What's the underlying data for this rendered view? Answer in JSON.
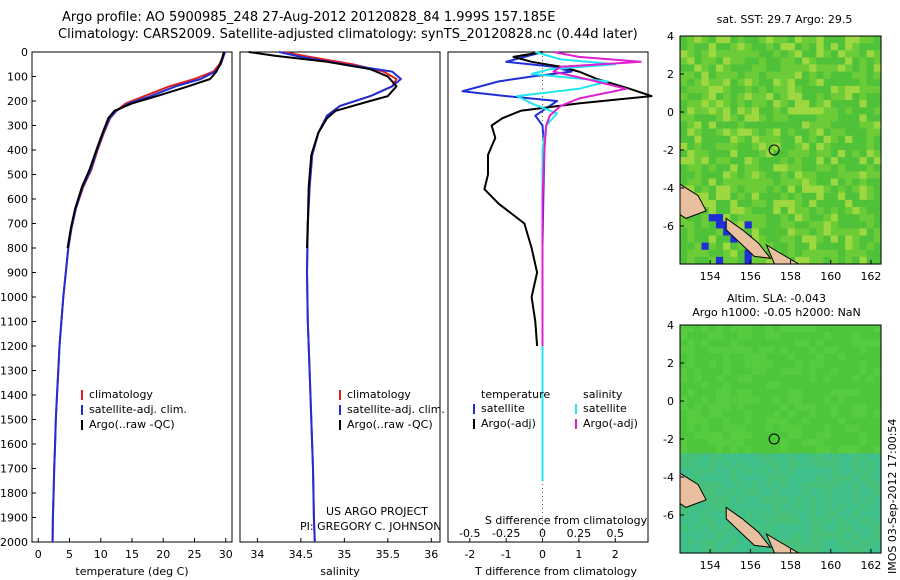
{
  "header": {
    "title_line1": "Argo profile: AO 5900985_248 27-Aug-2012 20120828_84 1.999S 157.185E",
    "title_line2": "Climatology: CARS2009. Satellite-adjusted climatology: synTS_20120828.nc (0.44d later)"
  },
  "credits": {
    "project": "US ARGO PROJECT",
    "pi": "PI: GREGORY C. JOHNSON"
  },
  "side_stamp": "IMOS 03-Sep-2012 17:00:54",
  "colors": {
    "climatology": "#e02020",
    "satellite": "#1f2fd6",
    "argo": "#000000",
    "satellite_salinity": "#22e6ee",
    "argo_salinity": "#e020d0",
    "map_ocean": "#48c838",
    "map_land": "#e8c0a0"
  },
  "chart_data": [
    {
      "type": "line",
      "panel": "temperature",
      "xlabel": "temperature (deg C)",
      "ylabel": "",
      "xlim": [
        -1,
        31
      ],
      "ylim": [
        2000,
        0
      ],
      "xticks": [
        0,
        5,
        10,
        15,
        20,
        25,
        30
      ],
      "yticks": [
        0,
        100,
        200,
        300,
        400,
        500,
        600,
        700,
        800,
        900,
        1000,
        1100,
        1200,
        1300,
        1400,
        1500,
        1600,
        1700,
        1800,
        1900,
        2000
      ],
      "legend": [
        "climatology",
        "satellite-adj. clim.",
        "Argo(..raw -QC)"
      ],
      "legend_position": "lower-right",
      "series": [
        {
          "name": "climatology",
          "color": "#e02020",
          "points": [
            [
              29.8,
              0
            ],
            [
              29.5,
              20
            ],
            [
              29.0,
              50
            ],
            [
              28.0,
              80
            ],
            [
              25.0,
              110
            ],
            [
              21.0,
              140
            ],
            [
              17.0,
              180
            ],
            [
              14.0,
              210
            ],
            [
              12.5,
              240
            ],
            [
              11.5,
              270
            ],
            [
              10.5,
              330
            ],
            [
              9.5,
              400
            ],
            [
              8.5,
              480
            ],
            [
              7.2,
              550
            ],
            [
              6.0,
              640
            ],
            [
              5.3,
              720
            ],
            [
              4.8,
              800
            ],
            [
              4.4,
              900
            ],
            [
              4.0,
              1000
            ],
            [
              3.7,
              1100
            ],
            [
              3.4,
              1200
            ],
            [
              3.2,
              1300
            ],
            [
              3.0,
              1400
            ],
            [
              2.8,
              1500
            ],
            [
              2.7,
              1600
            ],
            [
              2.55,
              1700
            ],
            [
              2.45,
              1800
            ],
            [
              2.35,
              1900
            ],
            [
              2.3,
              2000
            ]
          ]
        },
        {
          "name": "satellite-adj. clim.",
          "color": "#1f2fd6",
          "points": [
            [
              29.9,
              0
            ],
            [
              29.6,
              20
            ],
            [
              29.2,
              50
            ],
            [
              28.3,
              80
            ],
            [
              26.0,
              110
            ],
            [
              22.0,
              140
            ],
            [
              18.0,
              180
            ],
            [
              14.5,
              210
            ],
            [
              12.5,
              240
            ],
            [
              11.4,
              270
            ],
            [
              10.4,
              330
            ],
            [
              9.4,
              400
            ],
            [
              8.4,
              480
            ],
            [
              7.1,
              550
            ],
            [
              6.0,
              640
            ],
            [
              5.3,
              720
            ],
            [
              4.8,
              800
            ],
            [
              4.4,
              900
            ],
            [
              4.0,
              1000
            ],
            [
              3.7,
              1100
            ],
            [
              3.4,
              1200
            ],
            [
              3.2,
              1300
            ],
            [
              3.0,
              1400
            ],
            [
              2.8,
              1500
            ],
            [
              2.7,
              1600
            ],
            [
              2.55,
              1700
            ],
            [
              2.45,
              1800
            ],
            [
              2.35,
              1900
            ],
            [
              2.3,
              2000
            ]
          ]
        },
        {
          "name": "Argo(..raw -QC)",
          "color": "#000000",
          "points": [
            [
              29.7,
              0
            ],
            [
              29.5,
              20
            ],
            [
              29.1,
              50
            ],
            [
              28.5,
              80
            ],
            [
              27.5,
              110
            ],
            [
              24.0,
              140
            ],
            [
              19.0,
              180
            ],
            [
              15.0,
              210
            ],
            [
              12.2,
              240
            ],
            [
              11.2,
              270
            ],
            [
              10.3,
              330
            ],
            [
              9.3,
              400
            ],
            [
              8.2,
              480
            ],
            [
              7.0,
              550
            ],
            [
              5.9,
              640
            ],
            [
              5.2,
              720
            ],
            [
              4.7,
              800
            ]
          ]
        }
      ]
    },
    {
      "type": "line",
      "panel": "salinity",
      "xlabel": "salinity",
      "ylabel": "",
      "xlim": [
        33.8,
        36.1
      ],
      "ylim": [
        2000,
        0
      ],
      "xticks": [
        34,
        34.5,
        35,
        35.5,
        36
      ],
      "legend": [
        "climatology",
        "satellite-adj. clim.",
        "Argo(..raw -QC)"
      ],
      "legend_position": "lower-right",
      "series": [
        {
          "name": "climatology",
          "color": "#e02020",
          "points": [
            [
              34.3,
              0
            ],
            [
              34.6,
              20
            ],
            [
              35.1,
              50
            ],
            [
              35.45,
              80
            ],
            [
              35.6,
              110
            ],
            [
              35.55,
              140
            ],
            [
              35.3,
              180
            ],
            [
              34.95,
              220
            ],
            [
              34.8,
              260
            ],
            [
              34.7,
              330
            ],
            [
              34.63,
              420
            ],
            [
              34.6,
              550
            ],
            [
              34.58,
              700
            ],
            [
              34.57,
              900
            ],
            [
              34.58,
              1100
            ],
            [
              34.6,
              1300
            ],
            [
              34.62,
              1500
            ],
            [
              34.64,
              1700
            ],
            [
              34.65,
              1900
            ],
            [
              34.66,
              2000
            ]
          ]
        },
        {
          "name": "satellite-adj. clim.",
          "color": "#1f2fd6",
          "points": [
            [
              34.25,
              0
            ],
            [
              34.5,
              20
            ],
            [
              35.0,
              50
            ],
            [
              35.55,
              80
            ],
            [
              35.65,
              110
            ],
            [
              35.55,
              140
            ],
            [
              35.3,
              180
            ],
            [
              34.95,
              220
            ],
            [
              34.8,
              260
            ],
            [
              34.7,
              330
            ],
            [
              34.63,
              420
            ],
            [
              34.6,
              550
            ],
            [
              34.58,
              700
            ],
            [
              34.57,
              900
            ],
            [
              34.58,
              1100
            ],
            [
              34.6,
              1300
            ],
            [
              34.62,
              1500
            ],
            [
              34.64,
              1700
            ],
            [
              34.65,
              1900
            ],
            [
              34.66,
              2000
            ]
          ]
        },
        {
          "name": "Argo(..raw -QC)",
          "color": "#000000",
          "points": [
            [
              33.9,
              0
            ],
            [
              34.2,
              15
            ],
            [
              34.8,
              40
            ],
            [
              35.3,
              70
            ],
            [
              35.5,
              100
            ],
            [
              35.6,
              140
            ],
            [
              35.5,
              180
            ],
            [
              35.2,
              210
            ],
            [
              34.9,
              240
            ],
            [
              34.8,
              270
            ],
            [
              34.7,
              330
            ],
            [
              34.62,
              420
            ],
            [
              34.59,
              550
            ],
            [
              34.58,
              700
            ],
            [
              34.57,
              800
            ]
          ]
        }
      ]
    },
    {
      "type": "line",
      "panel": "difference",
      "xlabel_top": "S difference from climatology",
      "xlabel": "T difference from climatology",
      "xlim": [
        -2.6,
        2.9
      ],
      "ylim": [
        2000,
        0
      ],
      "xticks": [
        -2,
        -1,
        0,
        1,
        2
      ],
      "xticks_salinity": [
        -0.5,
        -0.25,
        0,
        0.25,
        0.5
      ],
      "legend_groups": [
        "temperature",
        "salinity"
      ],
      "legend": [
        "satellite",
        "Argo(-adj)",
        "satellite",
        "Argo(-adj)"
      ],
      "legend_position": "lower-center",
      "series": [
        {
          "name": "satellite",
          "group": "temperature",
          "color": "#1f2fd6",
          "points": [
            [
              0,
              0
            ],
            [
              -0.5,
              20
            ],
            [
              -1.0,
              40
            ],
            [
              0.3,
              60
            ],
            [
              0.8,
              80
            ],
            [
              -0.3,
              100
            ],
            [
              -1.2,
              120
            ],
            [
              -2.2,
              160
            ],
            [
              -1.0,
              180
            ],
            [
              0.4,
              200
            ],
            [
              0.1,
              230
            ],
            [
              -0.2,
              260
            ],
            [
              0,
              300
            ],
            [
              0.05,
              400
            ],
            [
              0.02,
              600
            ],
            [
              0,
              800
            ],
            [
              0,
              1000
            ],
            [
              0,
              1200
            ],
            [
              0,
              1500
            ],
            [
              0,
              1700
            ],
            [
              0,
              1750
            ]
          ]
        },
        {
          "name": "Argo(-adj)",
          "group": "temperature",
          "color": "#000000",
          "points": [
            [
              0,
              0
            ],
            [
              -0.8,
              20
            ],
            [
              -0.3,
              40
            ],
            [
              0.5,
              60
            ],
            [
              1.0,
              80
            ],
            [
              1.5,
              110
            ],
            [
              2.4,
              150
            ],
            [
              3.0,
              180
            ],
            [
              1.0,
              210
            ],
            [
              -0.6,
              240
            ],
            [
              -1.1,
              270
            ],
            [
              -1.4,
              300
            ],
            [
              -1.3,
              350
            ],
            [
              -1.5,
              420
            ],
            [
              -1.5,
              500
            ],
            [
              -1.6,
              560
            ],
            [
              -1.2,
              620
            ],
            [
              -0.5,
              700
            ],
            [
              -0.3,
              800
            ],
            [
              -0.15,
              900
            ],
            [
              -0.3,
              1000
            ],
            [
              -0.2,
              1100
            ],
            [
              -0.15,
              1200
            ]
          ]
        },
        {
          "name": "satellite",
          "group": "salinity",
          "color": "#22e6ee",
          "points": [
            [
              -0.2,
              0
            ],
            [
              0.5,
              30
            ],
            [
              2.0,
              50
            ],
            [
              0.2,
              70
            ],
            [
              -0.3,
              90
            ],
            [
              1.8,
              120
            ],
            [
              1.0,
              150
            ],
            [
              -0.7,
              180
            ],
            [
              -0.3,
              210
            ],
            [
              0.4,
              250
            ],
            [
              0.1,
              300
            ],
            [
              0,
              400
            ],
            [
              0,
              600
            ],
            [
              0,
              800
            ],
            [
              0,
              1000
            ],
            [
              0,
              1200
            ],
            [
              0,
              1500
            ],
            [
              0,
              1750
            ]
          ]
        },
        {
          "name": "Argo(-adj)",
          "group": "salinity",
          "color": "#e020d0",
          "points": [
            [
              0.3,
              0
            ],
            [
              1.0,
              20
            ],
            [
              2.7,
              40
            ],
            [
              0.5,
              60
            ],
            [
              0.3,
              80
            ],
            [
              1.2,
              110
            ],
            [
              2.3,
              150
            ],
            [
              1.0,
              190
            ],
            [
              0.5,
              220
            ],
            [
              0.2,
              260
            ],
            [
              0.1,
              300
            ],
            [
              0.05,
              400
            ],
            [
              0,
              600
            ],
            [
              0,
              800
            ],
            [
              0,
              1000
            ],
            [
              0,
              1200
            ]
          ]
        }
      ]
    },
    {
      "type": "heatmap",
      "panel": "sst_map",
      "title": "sat. SST: 29.7  Argo: 29.5",
      "xlim": [
        152.5,
        162.5
      ],
      "ylim": [
        -8,
        4
      ],
      "xticks": [
        154,
        156,
        158,
        160,
        162
      ],
      "yticks": [
        4,
        2,
        0,
        -2,
        -4,
        -6
      ],
      "argo_position": [
        157.185,
        -1.999
      ]
    },
    {
      "type": "heatmap",
      "panel": "sla_map",
      "title_line1": "Altim. SLA: -0.043",
      "title_line2": "Argo h1000: -0.05  h2000: NaN",
      "xlim": [
        152.5,
        162.5
      ],
      "ylim": [
        -8,
        4
      ],
      "xticks": [
        154,
        156,
        158,
        160,
        162
      ],
      "yticks": [
        4,
        2,
        0,
        -2,
        -4,
        -6
      ],
      "argo_position": [
        157.185,
        -1.999
      ]
    }
  ]
}
